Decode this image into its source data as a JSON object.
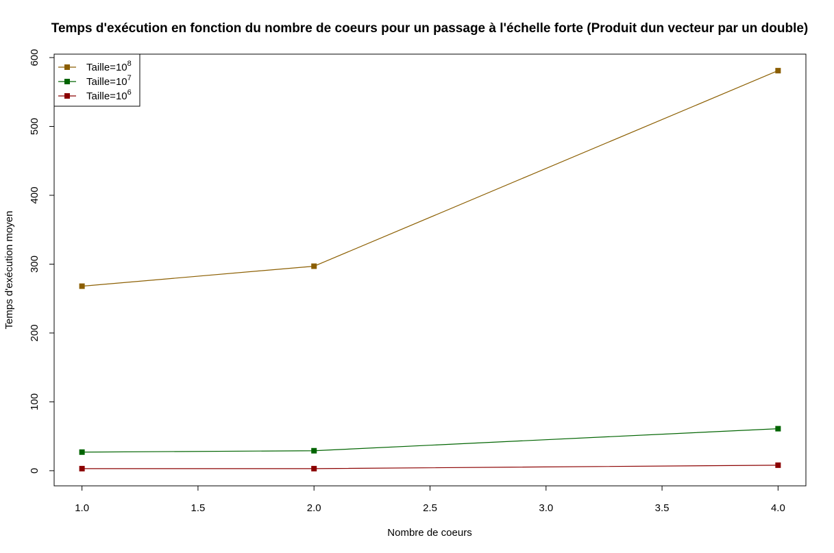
{
  "chart_data": {
    "type": "line",
    "title": "Temps d'exécution en fonction du nombre de coeurs pour un passage à l'échelle forte (Produit dun vecteur par un double)",
    "xlabel": "Nombre de coeurs",
    "ylabel": "Temps d'exécution moyen",
    "xlim": [
      0.88,
      4.12
    ],
    "ylim": [
      -22,
      605
    ],
    "x_ticks": [
      1.0,
      1.5,
      2.0,
      2.5,
      3.0,
      3.5,
      4.0
    ],
    "x_tick_labels": [
      "1.0",
      "1.5",
      "2.0",
      "2.5",
      "3.0",
      "3.5",
      "4.0"
    ],
    "y_ticks": [
      0,
      100,
      200,
      300,
      400,
      500,
      600
    ],
    "y_tick_labels": [
      "0",
      "100",
      "200",
      "300",
      "400",
      "500",
      "600"
    ],
    "grid": false,
    "legend_position": "top-left",
    "x": [
      1,
      2,
      4
    ],
    "series": [
      {
        "name": "Taille=10",
        "exponent": "8",
        "color": "#8B5E00",
        "values": [
          268,
          297,
          581
        ]
      },
      {
        "name": "Taille=10",
        "exponent": "7",
        "color": "#006400",
        "values": [
          27,
          29,
          61
        ]
      },
      {
        "name": "Taille=10",
        "exponent": "6",
        "color": "#8B0000",
        "values": [
          3,
          3,
          8
        ]
      }
    ]
  }
}
